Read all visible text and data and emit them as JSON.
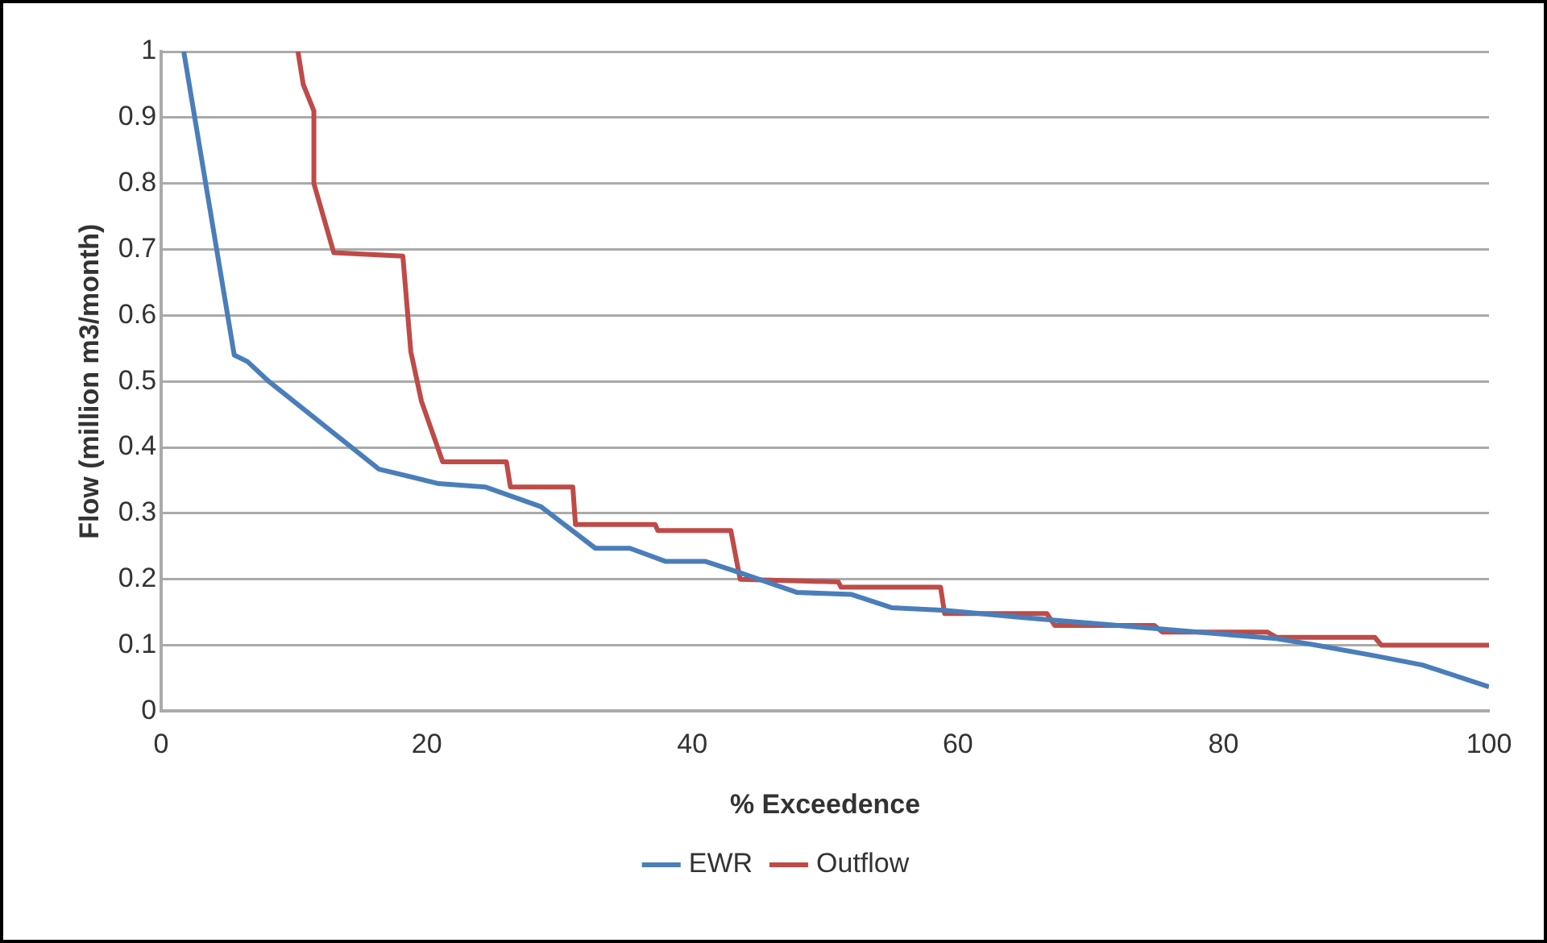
{
  "chart_data": {
    "type": "line",
    "xlabel": "% Exceedence",
    "ylabel": "Flow (million m3/month)",
    "xlim": [
      0,
      100
    ],
    "xticks": [
      0,
      20,
      40,
      60,
      80,
      100
    ],
    "ylim": [
      0,
      1
    ],
    "yticks": [
      0,
      0.1,
      0.2,
      0.3,
      0.4,
      0.5,
      0.6,
      0.7,
      0.8,
      0.9,
      1
    ],
    "grid": "y",
    "legend": "bottom",
    "marker": "none",
    "line_style": "solid",
    "series": [
      {
        "name": "EWR",
        "color": "#4a7ebb",
        "x": [
          1.7,
          5.5,
          6.5,
          8.1,
          16.4,
          20.9,
          24.4,
          28.6,
          32.7,
          35.3,
          38,
          41,
          43.6,
          47.9,
          52,
          55,
          59,
          66,
          75,
          84,
          87,
          91.4,
          95,
          100
        ],
        "values": [
          1,
          0.54,
          0.53,
          0.5,
          0.367,
          0.345,
          0.34,
          0.31,
          0.247,
          0.247,
          0.227,
          0.227,
          0.21,
          0.18,
          0.177,
          0.157,
          0.153,
          0.14,
          0.125,
          0.11,
          0.1,
          0.084,
          0.07,
          0.037
        ]
      },
      {
        "name": "Outflow",
        "color": "#be4b48",
        "x": [
          10.3,
          10.7,
          11.5,
          11.5,
          13,
          18.2,
          18.8,
          19.6,
          21.2,
          26,
          26.3,
          31,
          31.2,
          37.2,
          37.4,
          42.9,
          43.6,
          51,
          51.2,
          58.7,
          59,
          66.7,
          67.3,
          74.8,
          75.4,
          83.3,
          84,
          91.4,
          91.9,
          100
        ],
        "values": [
          1,
          0.95,
          0.91,
          0.8,
          0.695,
          0.69,
          0.545,
          0.47,
          0.378,
          0.378,
          0.34,
          0.34,
          0.283,
          0.283,
          0.274,
          0.274,
          0.2,
          0.196,
          0.188,
          0.188,
          0.148,
          0.148,
          0.13,
          0.13,
          0.12,
          0.12,
          0.112,
          0.112,
          0.1,
          0.1
        ]
      }
    ]
  }
}
